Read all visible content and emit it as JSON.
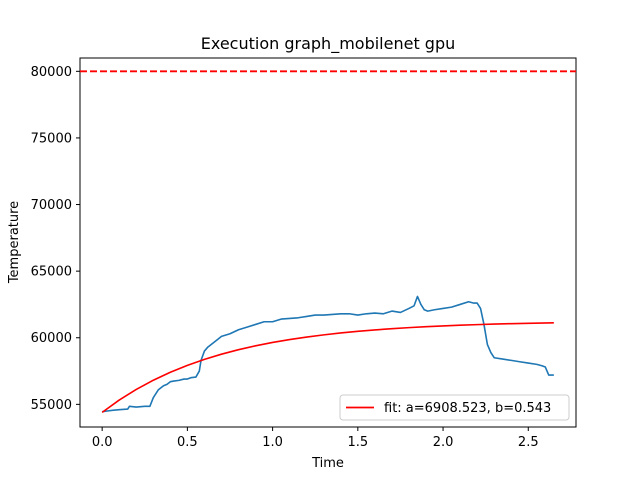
{
  "chart_data": {
    "type": "line",
    "title": "Execution graph_mobilenet gpu",
    "xlabel": "Time",
    "ylabel": "Temperature",
    "xlim": [
      -0.13,
      2.78
    ],
    "ylim": [
      53300,
      81000
    ],
    "xticks": [
      0.0,
      0.5,
      1.0,
      1.5,
      2.0,
      2.5
    ],
    "xtick_labels": [
      "0.0",
      "0.5",
      "1.0",
      "1.5",
      "2.0",
      "2.5"
    ],
    "yticks": [
      55000,
      60000,
      65000,
      70000,
      75000,
      80000
    ],
    "ytick_labels": [
      "55000",
      "60000",
      "65000",
      "70000",
      "75000",
      "80000"
    ],
    "grid": false,
    "legend_position": "lower-right",
    "threshold": {
      "y": 80000,
      "color": "#ff0000",
      "style": "dashed"
    },
    "series": [
      {
        "color": "#1f77b4",
        "x": [
          0.0,
          0.03,
          0.06,
          0.1,
          0.15,
          0.16,
          0.2,
          0.25,
          0.28,
          0.3,
          0.33,
          0.36,
          0.38,
          0.4,
          0.42,
          0.45,
          0.48,
          0.5,
          0.52,
          0.55,
          0.57,
          0.58,
          0.6,
          0.62,
          0.65,
          0.68,
          0.7,
          0.75,
          0.8,
          0.85,
          0.9,
          0.95,
          1.0,
          1.05,
          1.1,
          1.15,
          1.2,
          1.25,
          1.3,
          1.35,
          1.4,
          1.45,
          1.5,
          1.55,
          1.6,
          1.65,
          1.7,
          1.75,
          1.8,
          1.83,
          1.85,
          1.87,
          1.89,
          1.91,
          1.95,
          2.0,
          2.05,
          2.1,
          2.15,
          2.18,
          2.2,
          2.22,
          2.24,
          2.26,
          2.28,
          2.3,
          2.35,
          2.4,
          2.45,
          2.5,
          2.55,
          2.58,
          2.6,
          2.62,
          2.65
        ],
        "y": [
          54450,
          54500,
          54550,
          54600,
          54650,
          54850,
          54800,
          54850,
          54850,
          55500,
          56100,
          56400,
          56500,
          56700,
          56750,
          56800,
          56900,
          56900,
          57000,
          57050,
          57500,
          58300,
          59000,
          59300,
          59600,
          59900,
          60100,
          60300,
          60600,
          60800,
          61000,
          61200,
          61200,
          61400,
          61450,
          61500,
          61600,
          61700,
          61700,
          61750,
          61800,
          61800,
          61700,
          61800,
          61850,
          61800,
          62000,
          61900,
          62200,
          62400,
          63100,
          62500,
          62100,
          62000,
          62100,
          62200,
          62300,
          62500,
          62700,
          62600,
          62600,
          62200,
          61000,
          59500,
          58900,
          58500,
          58400,
          58300,
          58200,
          58100,
          58000,
          57900,
          57800,
          57200,
          57200
        ]
      },
      {
        "name": "fit: a=6908.523, b=0.543",
        "color": "#ff0000",
        "model": {
          "y0": 54400,
          "a": 6908.523,
          "b": 0.543
        },
        "x": [
          0.0,
          0.1,
          0.2,
          0.3,
          0.4,
          0.5,
          0.6,
          0.7,
          0.8,
          0.9,
          1.0,
          1.1,
          1.2,
          1.3,
          1.4,
          1.5,
          1.6,
          1.7,
          1.8,
          1.9,
          2.0,
          2.1,
          2.2,
          2.3,
          2.4,
          2.5,
          2.65
        ],
        "y": [
          54400,
          55322,
          56120,
          56811,
          57410,
          57928,
          58377,
          58766,
          59102,
          59393,
          59646,
          59864,
          60053,
          60217,
          60359,
          60482,
          60588,
          60680,
          60760,
          60829,
          60889,
          60940,
          60985,
          61024,
          61058,
          61087,
          61124
        ]
      }
    ]
  }
}
